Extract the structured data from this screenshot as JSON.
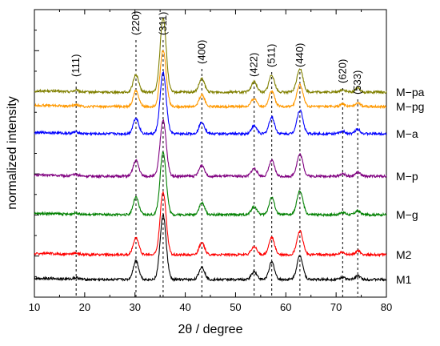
{
  "chart_data": {
    "type": "line",
    "xlabel": "2θ / degree",
    "ylabel": "normalized intensity",
    "xlim": [
      10,
      80
    ],
    "x_ticks": [
      "10",
      "20",
      "30",
      "40",
      "50",
      "60",
      "70",
      "80"
    ],
    "grid": false,
    "legend": "series labels at right end of each trace",
    "peaks": [
      {
        "label": "(111)",
        "x": 18.3
      },
      {
        "label": "(220)",
        "x": 30.2
      },
      {
        "label": "(311)",
        "x": 35.6
      },
      {
        "label": "(400)",
        "x": 43.3
      },
      {
        "label": "(422)",
        "x": 53.7
      },
      {
        "label": "(511)",
        "x": 57.2
      },
      {
        "label": "(440)",
        "x": 62.8
      },
      {
        "label": "(620)",
        "x": 71.3
      },
      {
        "label": "(533)",
        "x": 74.3
      }
    ],
    "series": [
      {
        "name": "M−pa",
        "color": "#808000",
        "peak_heights": [
          0.02,
          0.22,
          0.95,
          0.17,
          0.13,
          0.22,
          0.3,
          0.03,
          0.05
        ]
      },
      {
        "name": "M−pg",
        "color": "#ff9900",
        "peak_heights": [
          0.02,
          0.2,
          0.72,
          0.15,
          0.1,
          0.2,
          0.28,
          0.03,
          0.05
        ]
      },
      {
        "name": "M−a",
        "color": "#0000ff",
        "peak_heights": [
          0.02,
          0.2,
          0.78,
          0.15,
          0.1,
          0.21,
          0.3,
          0.03,
          0.06
        ]
      },
      {
        "name": "M−p",
        "color": "#800080",
        "peak_heights": [
          0.02,
          0.2,
          0.72,
          0.14,
          0.1,
          0.2,
          0.28,
          0.03,
          0.05
        ]
      },
      {
        "name": "M−g",
        "color": "#008000",
        "peak_heights": [
          0.02,
          0.22,
          0.8,
          0.15,
          0.1,
          0.22,
          0.3,
          0.03,
          0.05
        ]
      },
      {
        "name": "M2",
        "color": "#ff0000",
        "peak_heights": [
          0.02,
          0.22,
          0.8,
          0.15,
          0.1,
          0.22,
          0.3,
          0.03,
          0.05
        ]
      },
      {
        "name": "M1",
        "color": "#000000",
        "peak_heights": [
          0.02,
          0.24,
          0.82,
          0.16,
          0.1,
          0.22,
          0.3,
          0.03,
          0.05
        ]
      }
    ]
  }
}
